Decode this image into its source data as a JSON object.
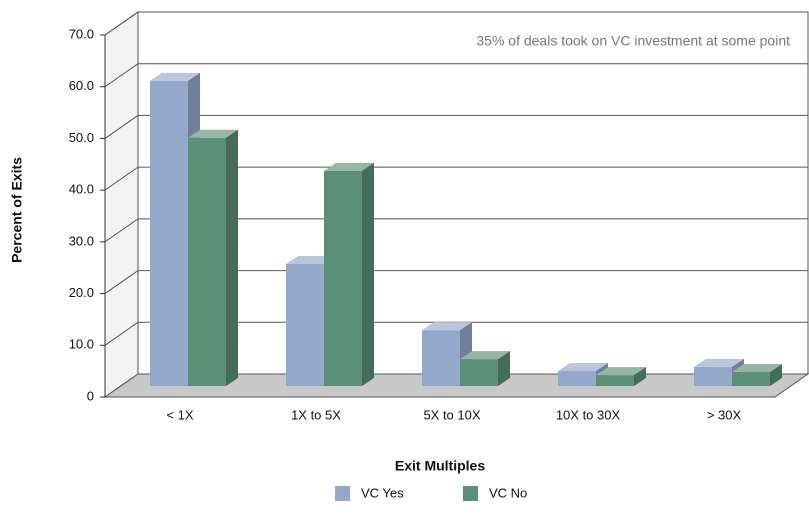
{
  "chart_data": {
    "type": "bar3d",
    "annotation": "35% of deals took on VC investment at some point",
    "x_label": "Exit Multiples",
    "y_label": "Percent of Exits",
    "categories": [
      "< 1X",
      "1X to 5X",
      "5X to 10X",
      "10X to 30X",
      "> 30X"
    ],
    "series": [
      {
        "name": "VC Yes",
        "color": "#94a8cc",
        "values": [
          59,
          23.6,
          10.8,
          2.9,
          3.7
        ]
      },
      {
        "name": "VC No",
        "color": "#5c8f78",
        "values": [
          48,
          41.6,
          5.2,
          2.1,
          2.7
        ]
      }
    ],
    "ylim": [
      0,
      70
    ],
    "yticks": [
      0,
      {
        "value": 10,
        "label": "10.0"
      },
      {
        "value": 20,
        "label": "20.0"
      },
      {
        "value": 30,
        "label": "30.0"
      },
      {
        "value": 40,
        "label": "40.0"
      },
      {
        "value": 50,
        "label": "50.0"
      },
      {
        "value": 60,
        "label": "60.0"
      },
      {
        "value": 70,
        "label": "70.0"
      }
    ],
    "grid": true,
    "legend": "bottom"
  }
}
